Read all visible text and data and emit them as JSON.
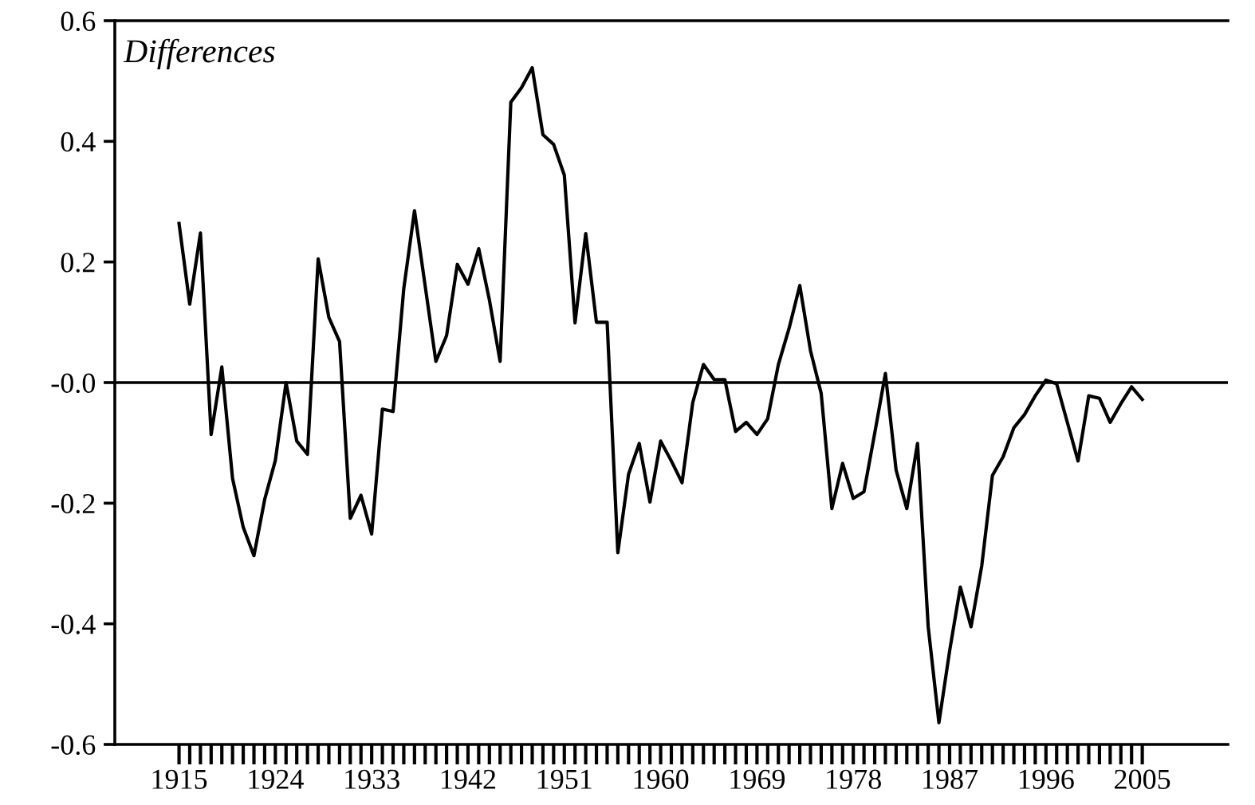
{
  "chart_data": {
    "type": "line",
    "title": "Differences",
    "x": [
      1915,
      1916,
      1917,
      1918,
      1919,
      1920,
      1921,
      1922,
      1923,
      1924,
      1925,
      1926,
      1927,
      1928,
      1929,
      1930,
      1931,
      1932,
      1933,
      1934,
      1935,
      1936,
      1937,
      1938,
      1939,
      1940,
      1941,
      1942,
      1943,
      1944,
      1945,
      1946,
      1947,
      1948,
      1949,
      1950,
      1951,
      1952,
      1953,
      1954,
      1955,
      1956,
      1957,
      1958,
      1959,
      1960,
      1961,
      1962,
      1963,
      1964,
      1965,
      1966,
      1967,
      1968,
      1969,
      1970,
      1971,
      1972,
      1973,
      1974,
      1975,
      1976,
      1977,
      1978,
      1979,
      1980,
      1981,
      1982,
      1983,
      1984,
      1985,
      1986,
      1987,
      1988,
      1989,
      1990,
      1991,
      1992,
      1993,
      1994,
      1995,
      1996,
      1997,
      1998,
      1999,
      2000,
      2001,
      2002,
      2003,
      2004,
      2005
    ],
    "series": [
      {
        "color": "#000000",
        "values": [
          0.264,
          0.13,
          0.248,
          -0.086,
          0.026,
          -0.159,
          -0.24,
          -0.287,
          -0.194,
          -0.129,
          0.0,
          -0.097,
          -0.119,
          0.205,
          0.108,
          0.068,
          -0.225,
          -0.187,
          -0.251,
          -0.044,
          -0.048,
          0.156,
          0.285,
          0.16,
          0.035,
          0.078,
          0.196,
          0.163,
          0.222,
          0.137,
          0.035,
          0.465,
          0.489,
          0.522,
          0.411,
          0.395,
          0.344,
          0.099,
          0.247,
          0.1,
          0.1,
          -0.282,
          -0.152,
          -0.101,
          -0.198,
          -0.097,
          -0.13,
          -0.166,
          -0.033,
          0.03,
          0.005,
          0.005,
          -0.081,
          -0.066,
          -0.086,
          -0.06,
          0.03,
          0.09,
          0.161,
          0.053,
          -0.018,
          -0.209,
          -0.134,
          -0.192,
          -0.181,
          -0.084,
          0.015,
          -0.145,
          -0.209,
          -0.101,
          -0.405,
          -0.564,
          -0.445,
          -0.339,
          -0.405,
          -0.304,
          -0.154,
          -0.123,
          -0.075,
          -0.053,
          -0.022,
          0.004,
          -0.002,
          -0.066,
          -0.13,
          -0.022,
          -0.026,
          -0.066,
          -0.035,
          -0.007,
          -0.028
        ]
      }
    ],
    "xlim": [
      1909,
      2013
    ],
    "xticks": [
      1915,
      {
        "value": 1916,
        "label": null
      },
      {
        "value": 1917,
        "label": null
      },
      {
        "value": 1918,
        "label": null
      },
      {
        "value": 1919,
        "label": null
      },
      {
        "value": 1920,
        "label": null
      },
      {
        "value": 1921,
        "label": null
      },
      {
        "value": 1922,
        "label": null
      },
      {
        "value": 1923,
        "label": null
      },
      1924,
      {
        "value": 1925,
        "label": null
      },
      {
        "value": 1926,
        "label": null
      },
      {
        "value": 1927,
        "label": null
      },
      {
        "value": 1928,
        "label": null
      },
      {
        "value": 1929,
        "label": null
      },
      {
        "value": 1930,
        "label": null
      },
      {
        "value": 1931,
        "label": null
      },
      {
        "value": 1932,
        "label": null
      },
      1933,
      {
        "value": 1934,
        "label": null
      },
      {
        "value": 1935,
        "label": null
      },
      {
        "value": 1936,
        "label": null
      },
      {
        "value": 1937,
        "label": null
      },
      {
        "value": 1938,
        "label": null
      },
      {
        "value": 1939,
        "label": null
      },
      {
        "value": 1940,
        "label": null
      },
      {
        "value": 1941,
        "label": null
      },
      1942,
      {
        "value": 1943,
        "label": null
      },
      {
        "value": 1944,
        "label": null
      },
      {
        "value": 1945,
        "label": null
      },
      {
        "value": 1946,
        "label": null
      },
      {
        "value": 1947,
        "label": null
      },
      {
        "value": 1948,
        "label": null
      },
      {
        "value": 1949,
        "label": null
      },
      {
        "value": 1950,
        "label": null
      },
      1951,
      {
        "value": 1952,
        "label": null
      },
      {
        "value": 1953,
        "label": null
      },
      {
        "value": 1954,
        "label": null
      },
      {
        "value": 1955,
        "label": null
      },
      {
        "value": 1956,
        "label": null
      },
      {
        "value": 1957,
        "label": null
      },
      {
        "value": 1958,
        "label": null
      },
      {
        "value": 1959,
        "label": null
      },
      1960,
      {
        "value": 1961,
        "label": null
      },
      {
        "value": 1962,
        "label": null
      },
      {
        "value": 1963,
        "label": null
      },
      {
        "value": 1964,
        "label": null
      },
      {
        "value": 1965,
        "label": null
      },
      {
        "value": 1966,
        "label": null
      },
      {
        "value": 1967,
        "label": null
      },
      {
        "value": 1968,
        "label": null
      },
      1969,
      {
        "value": 1970,
        "label": null
      },
      {
        "value": 1971,
        "label": null
      },
      {
        "value": 1972,
        "label": null
      },
      {
        "value": 1973,
        "label": null
      },
      {
        "value": 1974,
        "label": null
      },
      {
        "value": 1975,
        "label": null
      },
      {
        "value": 1976,
        "label": null
      },
      {
        "value": 1977,
        "label": null
      },
      1978,
      {
        "value": 1979,
        "label": null
      },
      {
        "value": 1980,
        "label": null
      },
      {
        "value": 1981,
        "label": null
      },
      {
        "value": 1982,
        "label": null
      },
      {
        "value": 1983,
        "label": null
      },
      {
        "value": 1984,
        "label": null
      },
      {
        "value": 1985,
        "label": null
      },
      {
        "value": 1986,
        "label": null
      },
      1987,
      {
        "value": 1988,
        "label": null
      },
      {
        "value": 1989,
        "label": null
      },
      {
        "value": 1990,
        "label": null
      },
      {
        "value": 1991,
        "label": null
      },
      {
        "value": 1992,
        "label": null
      },
      {
        "value": 1993,
        "label": null
      },
      {
        "value": 1994,
        "label": null
      },
      {
        "value": 1995,
        "label": null
      },
      1996,
      {
        "value": 1997,
        "label": null
      },
      {
        "value": 1998,
        "label": null
      },
      {
        "value": 1999,
        "label": null
      },
      {
        "value": 2000,
        "label": null
      },
      {
        "value": 2001,
        "label": null
      },
      {
        "value": 2002,
        "label": null
      },
      {
        "value": 2003,
        "label": null
      },
      {
        "value": 2004,
        "label": null
      },
      2005
    ],
    "ylim": [
      -0.6,
      0.6
    ],
    "yticks": [
      -0.6,
      -0.4,
      -0.2,
      {
        "value": 0,
        "label": "-0.0"
      },
      0.2,
      0.4,
      0.6
    ],
    "ref_lines": [
      {
        "axis": "y",
        "value": 0,
        "color": "#000000"
      }
    ],
    "grid": false,
    "legend": false,
    "marker": "none",
    "line_style": "solid"
  }
}
